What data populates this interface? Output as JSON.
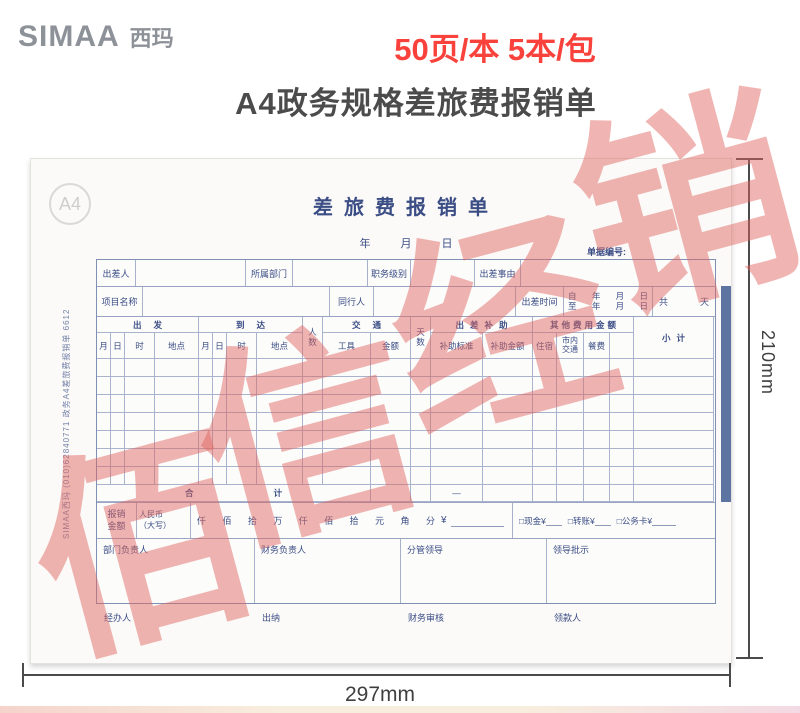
{
  "header": {
    "logo_en": "SIMAA",
    "logo_cn": "西玛",
    "promo": "50页/本 5本/包",
    "title": "A4政务规格差旅费报销单"
  },
  "form": {
    "badge": "A4",
    "title": "差旅费报销单",
    "date": {
      "year": "年",
      "month": "月",
      "day": "日"
    },
    "doc_no": "单据编号:",
    "side_note": "SIMAA西玛  (010)62840771  政务A4差旅费报销单  6612",
    "row1": {
      "traveler": "出差人",
      "department": "所属部门",
      "rank": "职务级别",
      "reason": "出差事由"
    },
    "row2": {
      "project": "项目名称",
      "companion": "同行人",
      "trip_time": "出差时间",
      "from": "自",
      "to": "至",
      "year": "年",
      "month": "月",
      "day": "日",
      "total": "共",
      "day_unit": "天"
    },
    "groups": {
      "depart": "出发",
      "arrive": "到达",
      "people_top": "人",
      "people_bottom": "数",
      "transport": "交通",
      "days_top": "天",
      "days_bottom": "数",
      "subsidy": "出差补助",
      "other": "其他费用金额",
      "subtotal": "小计"
    },
    "cols": {
      "month": "月",
      "day": "日",
      "hour": "时",
      "place": "地点",
      "count": "数",
      "tool": "工具",
      "amount": "金额",
      "std": "补助标准",
      "amt": "补助金额",
      "stay": "住宿",
      "city1": "市内",
      "city2": "交通",
      "meal": "餐费"
    },
    "total_row": {
      "left": "合",
      "right": "计",
      "dash": "—"
    },
    "amount": {
      "l1": "报销",
      "l2": "金额",
      "c1": "人民币",
      "c2": "（大写）",
      "digits": [
        "仟",
        "佰",
        "拾",
        "万",
        "仟",
        "佰",
        "拾",
        "元",
        "角",
        "分"
      ],
      "yen": "¥",
      "cash": "□现金¥",
      "transfer": "□转账¥",
      "card": "□公务卡¥"
    },
    "signs": [
      "部门负责人",
      "财务负责人",
      "分管领导",
      "领导批示"
    ],
    "footer": [
      "经办人",
      "出纳",
      "财务审核",
      "领款人"
    ]
  },
  "dimensions": {
    "height": "210mm",
    "width": "297mm"
  },
  "watermark": {
    "text": "佰信经销",
    "chars": [
      "佰",
      "信",
      "经",
      "销"
    ]
  },
  "colors": {
    "accent_red": "#f9423b",
    "form_navy": "#3b4d85",
    "watermark_red": "#df655f",
    "binding_strip": "#5d73a2",
    "logo_gray": "#8d9198"
  }
}
